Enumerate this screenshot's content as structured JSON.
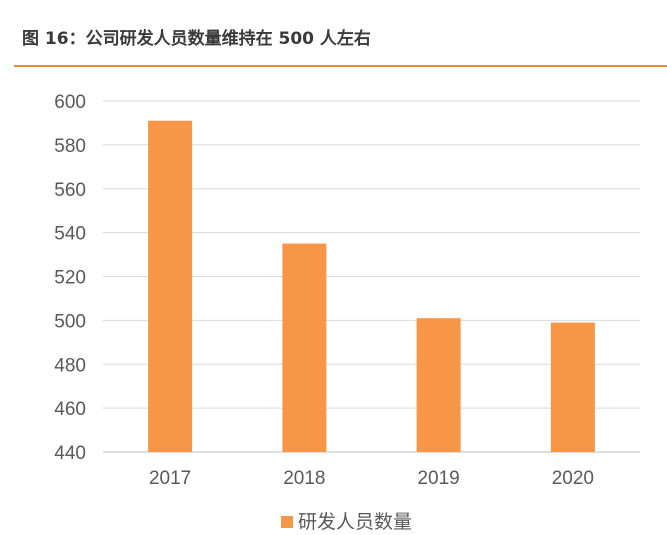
{
  "header": {
    "figure_title": "图 16：公司研发人员数量维持在 500 人左右"
  },
  "colors": {
    "accent_rule": "#e98a2c",
    "bar": "#f79646",
    "gridline": "#d9d9d9",
    "axis": "#bfbfbf"
  },
  "chart_data": {
    "type": "bar",
    "categories": [
      "2017",
      "2018",
      "2019",
      "2020"
    ],
    "series": [
      {
        "name": "研发人员数量",
        "values": [
          591,
          535,
          501,
          499
        ]
      }
    ],
    "ylim": [
      440,
      600
    ],
    "yticks": [
      440,
      460,
      480,
      500,
      520,
      540,
      560,
      580,
      600
    ],
    "grid": true,
    "legend": "bottom-center"
  }
}
